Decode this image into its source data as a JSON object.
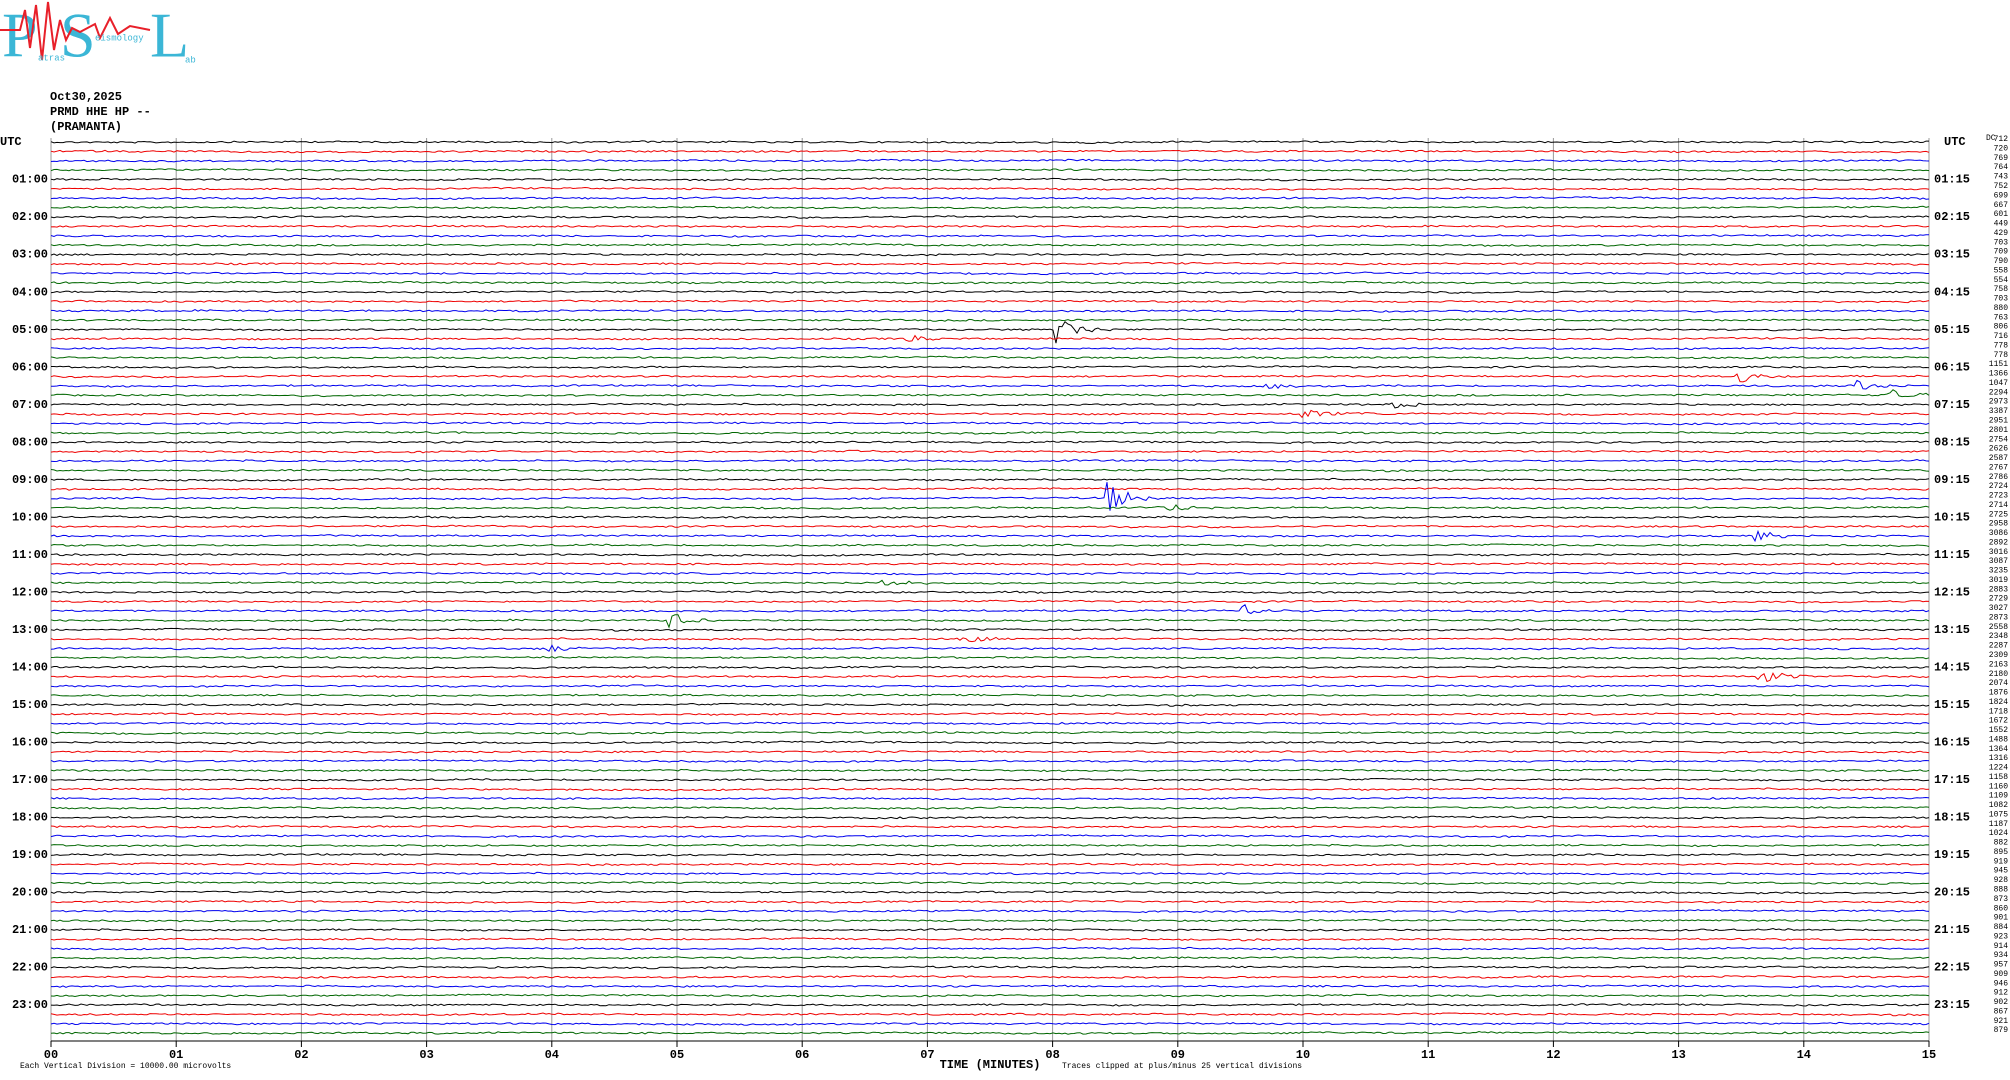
{
  "logo": {
    "letters": [
      "P",
      "S",
      "L"
    ],
    "words": [
      "atras",
      "eismology",
      "ab"
    ]
  },
  "header": {
    "date": "Oct30,2025",
    "station": "PRMD HHE HP --",
    "site": "(PRAMANTA)"
  },
  "left_axis": {
    "title": "UTC",
    "labels": [
      "01:00",
      "02:00",
      "03:00",
      "04:00",
      "05:00",
      "06:00",
      "07:00",
      "08:00",
      "09:00",
      "10:00",
      "11:00",
      "12:00",
      "13:00",
      "14:00",
      "15:00",
      "16:00",
      "17:00",
      "18:00",
      "19:00",
      "20:00",
      "21:00",
      "22:00",
      "23:00"
    ]
  },
  "right_axis": {
    "title": "UTC",
    "labels": [
      "01:15",
      "02:15",
      "03:15",
      "04:15",
      "05:15",
      "06:15",
      "07:15",
      "08:15",
      "09:15",
      "10:15",
      "11:15",
      "12:15",
      "13:15",
      "14:15",
      "15:15",
      "16:15",
      "17:15",
      "18:15",
      "19:15",
      "20:15",
      "21:15",
      "22:15",
      "23:15"
    ]
  },
  "dc_column": {
    "title": "DC",
    "values": [
      712,
      720,
      769,
      764,
      743,
      752,
      699,
      667,
      601,
      449,
      429,
      703,
      709,
      790,
      558,
      554,
      758,
      703,
      880,
      763,
      806,
      716,
      778,
      778,
      1151,
      1366,
      1047,
      2294,
      2973,
      3387,
      2951,
      2801,
      2754,
      2626,
      2587,
      2767,
      2786,
      2724,
      2723,
      2714,
      2725,
      2958,
      3086,
      2892,
      3016,
      3087,
      3235,
      3019,
      2883,
      2729,
      3027,
      2873,
      2558,
      2348,
      2287,
      2309,
      2163,
      2180,
      2074,
      1876,
      1824,
      1718,
      1672,
      1552,
      1488,
      1364,
      1316,
      1224,
      1158,
      1160,
      1109,
      1082,
      1075,
      1187,
      1024,
      882,
      895,
      919,
      945,
      928,
      888,
      873,
      860,
      901,
      884,
      923,
      914,
      934,
      957,
      909,
      946,
      912,
      902,
      867,
      921,
      879
    ]
  },
  "x_axis": {
    "ticks": [
      "00",
      "01",
      "02",
      "03",
      "04",
      "05",
      "06",
      "07",
      "08",
      "09",
      "10",
      "11",
      "12",
      "13",
      "14",
      "15"
    ],
    "title": "TIME (MINUTES)"
  },
  "footer": {
    "scale": "Each Vertical Division = 10000.00 microvolts",
    "clip": "Traces clipped at plus/minus 25 vertical divisions"
  }
}
